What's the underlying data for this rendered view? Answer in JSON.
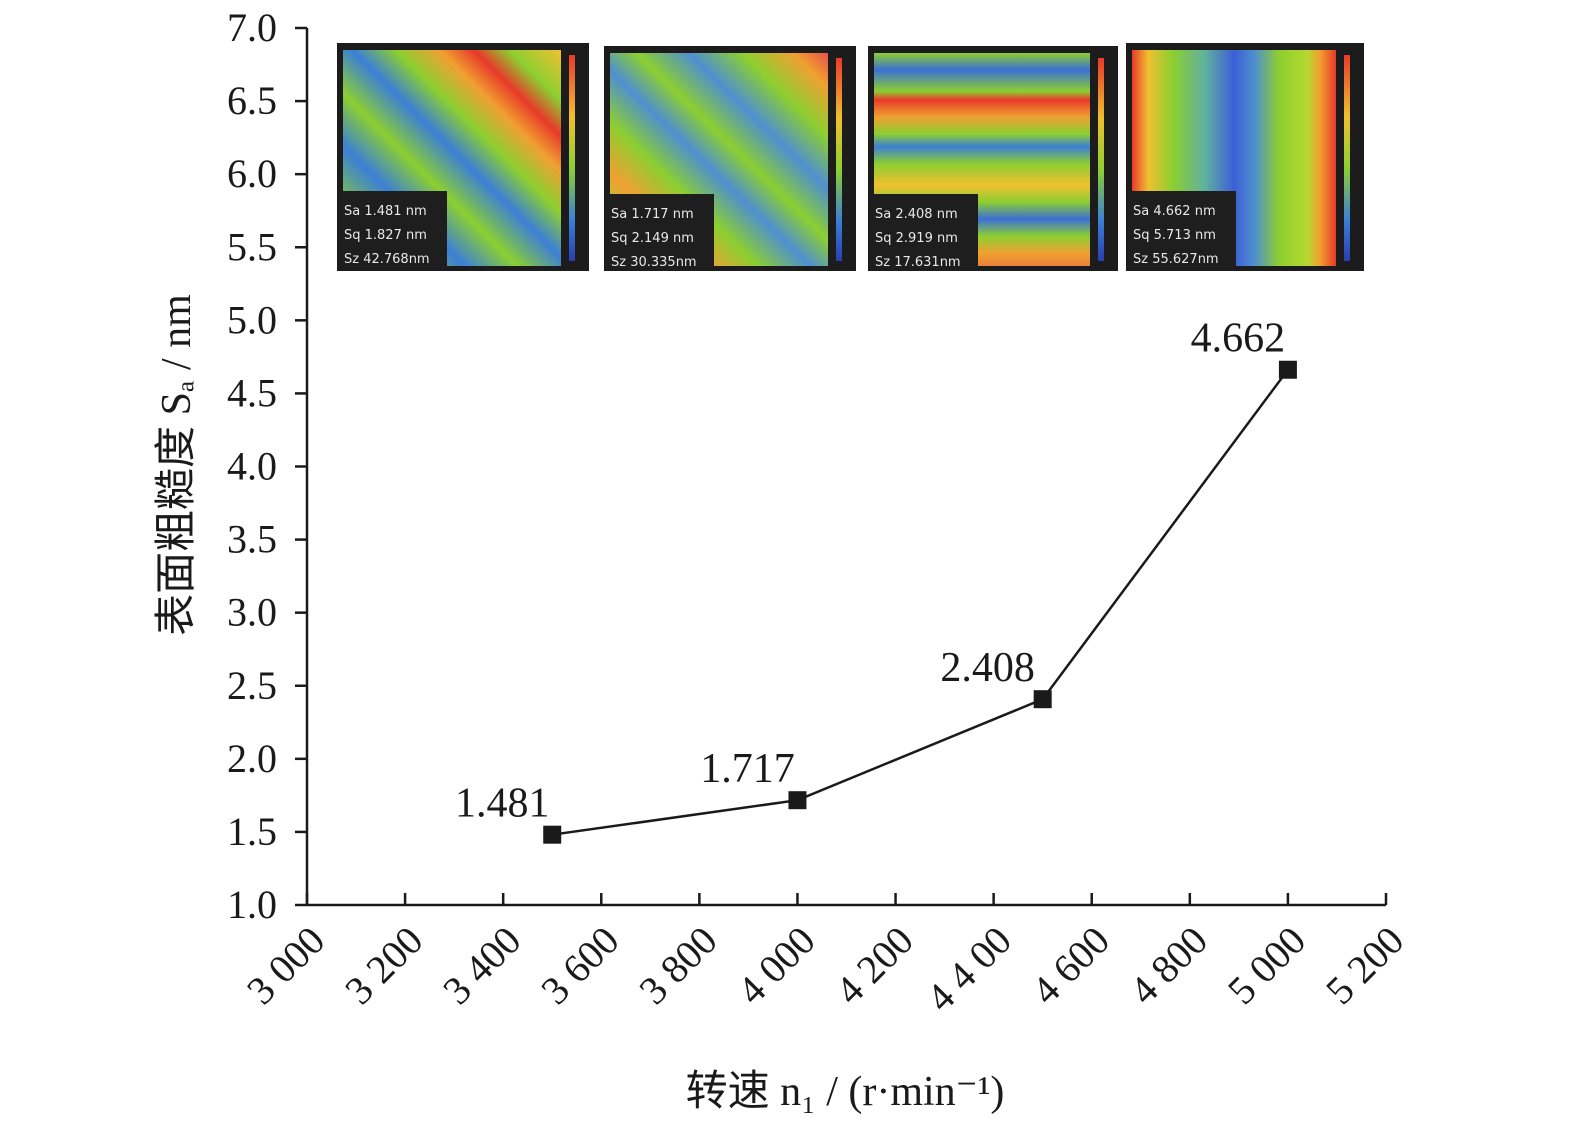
{
  "chart_data": {
    "type": "line",
    "x": [
      3500,
      4000,
      4500,
      5000
    ],
    "series": [
      {
        "values": [
          1.481,
          1.717,
          2.408,
          4.662
        ],
        "labels": [
          "1.481",
          "1.717",
          "2.408",
          "4.662"
        ]
      }
    ],
    "xlim": [
      3000,
      5200
    ],
    "ylim": [
      1.0,
      7.0
    ],
    "x_ticks": [
      3000,
      3200,
      3400,
      3600,
      3800,
      4000,
      4200,
      4400,
      4600,
      4800,
      5000,
      5200
    ],
    "x_tick_labels": [
      "3 000",
      "3 200",
      "3 400",
      "3 600",
      "3 800",
      "4 000",
      "4 200",
      "4 4 00",
      "4 600",
      "4 800",
      "5 000",
      "5 200"
    ],
    "y_ticks": [
      1.0,
      1.5,
      2.0,
      2.5,
      3.0,
      3.5,
      4.0,
      4.5,
      5.0,
      5.5,
      6.0,
      6.5,
      7.0
    ],
    "y_tick_labels": [
      "1.0",
      "1.5",
      "2.0",
      "2.5",
      "3.0",
      "3.5",
      "4.0",
      "4.5",
      "5.0",
      "5.5",
      "6.0",
      "6.5",
      "7.0"
    ],
    "xlabel": "转速 n₁ / (r·min⁻¹)",
    "ylabel": "表面粗糙度 Sₐ / nm",
    "marker": "square",
    "line_color": "#1a1a1a",
    "grid": false,
    "insets": [
      {
        "lines": [
          "Sa 1.481   nm",
          "Sq 1.827   nm",
          "Sz 42.768nm"
        ],
        "pattern": "diagonal"
      },
      {
        "lines": [
          "Sa 1.717   nm",
          "Sq 2.149   nm",
          "Sz 30.335nm"
        ],
        "pattern": "diagonal"
      },
      {
        "lines": [
          "Sa 2.408 nm",
          "Sq 2.919 nm",
          "Sz 17.631nm"
        ],
        "pattern": "horizontal"
      },
      {
        "lines": [
          "Sa 4.662  nm",
          "Sq 5.713  nm",
          "Sz 55.627nm"
        ],
        "pattern": "vertical"
      }
    ]
  }
}
